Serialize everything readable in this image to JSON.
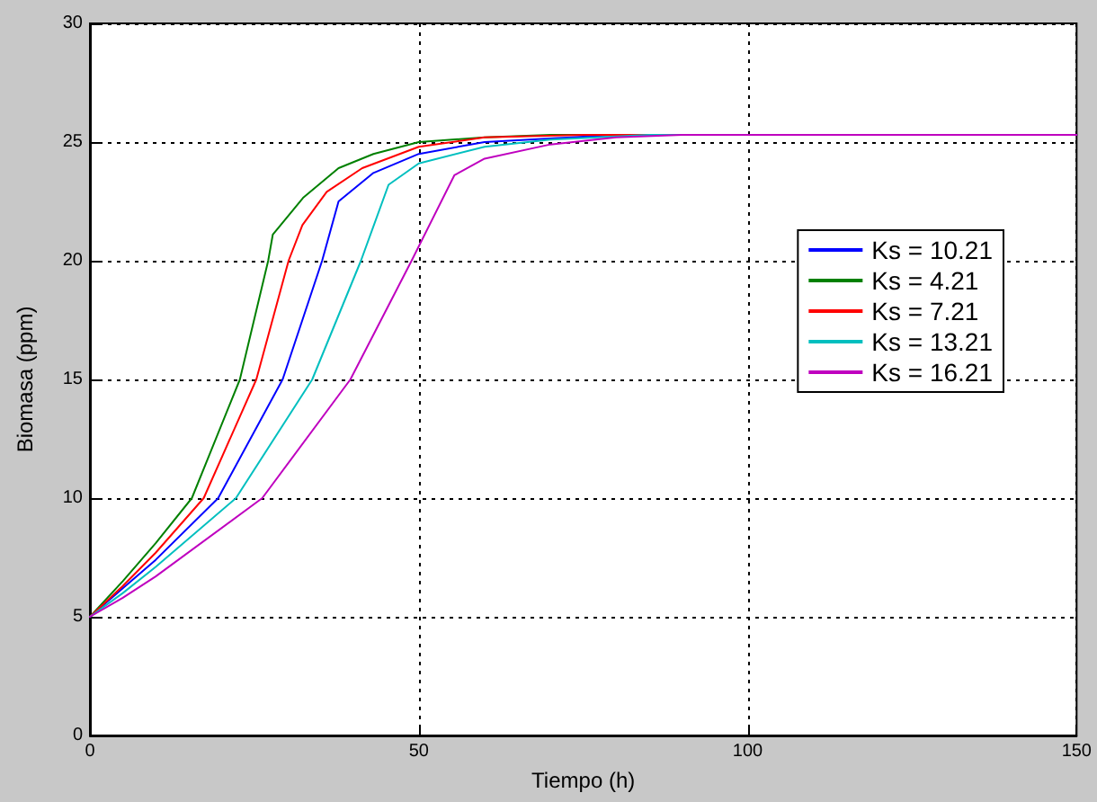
{
  "chart_data": {
    "type": "line",
    "xlabel": "Tiempo (h)",
    "ylabel": "Biomasa (ppm)",
    "xlim": [
      0,
      150
    ],
    "xticks": [
      0,
      50,
      100,
      150
    ],
    "ylim": [
      0,
      30
    ],
    "yticks": [
      0,
      5,
      10,
      15,
      20,
      25,
      30
    ],
    "grid": true,
    "legend": "right",
    "marker": "none",
    "line_style": "solid",
    "series": [
      {
        "name": "Ks = 10.21",
        "color": "#0000ff",
        "x": [
          0,
          5,
          10,
          19.5,
          29.3,
          35.3,
          37.8,
          43.1,
          50,
          60,
          80,
          150
        ],
        "values": [
          5,
          6.2,
          7.4,
          10,
          15,
          20,
          22.5,
          23.7,
          24.5,
          25.0,
          25.3,
          25.3
        ]
      },
      {
        "name": "Ks = 4.21",
        "color": "#008000",
        "x": [
          0,
          5,
          10,
          15.5,
          22.8,
          27.1,
          27.8,
          32.4,
          37.8,
          43.1,
          50,
          60,
          70,
          150
        ],
        "values": [
          5,
          6.5,
          8.1,
          10,
          15,
          20,
          21.1,
          22.65,
          23.9,
          24.5,
          25.0,
          25.2,
          25.3,
          25.3
        ]
      },
      {
        "name": "Ks = 7.21",
        "color": "#ff0000",
        "x": [
          0,
          5,
          10,
          17.3,
          25.3,
          30.2,
          32.3,
          36,
          41.4,
          50,
          60,
          75,
          150
        ],
        "values": [
          5,
          6.3,
          7.7,
          10,
          15,
          20,
          21.5,
          22.9,
          23.9,
          24.8,
          25.2,
          25.3,
          25.3
        ]
      },
      {
        "name": "Ks = 13.21",
        "color": "#00bfbf",
        "x": [
          0,
          5,
          10,
          22.2,
          33.8,
          41.2,
          45.4,
          50,
          60,
          70,
          85,
          150
        ],
        "values": [
          5,
          6.0,
          7.1,
          10,
          15,
          20,
          23.2,
          24.1,
          24.8,
          25.1,
          25.3,
          25.3
        ]
      },
      {
        "name": "Ks = 16.21",
        "color": "#bf00bf",
        "x": [
          0,
          5,
          10,
          26.2,
          39.6,
          48.9,
          55.4,
          60,
          70,
          80,
          90,
          150
        ],
        "values": [
          5,
          5.8,
          6.7,
          10,
          15,
          20,
          23.6,
          24.3,
          24.9,
          25.2,
          25.3,
          25.3
        ]
      }
    ]
  }
}
